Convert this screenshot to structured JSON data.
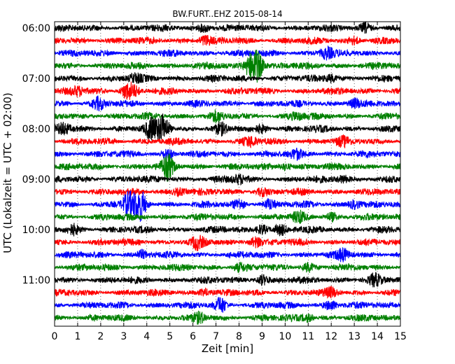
{
  "chart_data": {
    "type": "line",
    "title": "BW.FURT..EHZ 2015-08-14",
    "xlabel": "Zeit  [min]",
    "ylabel": "UTC (Lokalzeit = UTC + 02:00)",
    "xlim": [
      0,
      15
    ],
    "x_ticks": [
      0,
      1,
      2,
      3,
      4,
      5,
      6,
      7,
      8,
      9,
      10,
      11,
      12,
      13,
      14,
      15
    ],
    "y_tick_labels": [
      "06:00",
      "07:00",
      "08:00",
      "09:00",
      "10:00",
      "11:00"
    ],
    "trace_interval_min": 15,
    "grid": true,
    "trace_colors": [
      "#000000",
      "#ff0000",
      "#0000ff",
      "#008000"
    ],
    "series": [
      {
        "start": "06:00",
        "events": [
          [
            6.5,
            0.45
          ],
          [
            13.5,
            0.5
          ]
        ]
      },
      {
        "start": "06:15",
        "events": [
          [
            6.5,
            0.5
          ],
          [
            13.0,
            0.4
          ]
        ]
      },
      {
        "start": "06:30",
        "events": [
          [
            11.8,
            0.6
          ]
        ]
      },
      {
        "start": "06:45",
        "events": [
          [
            8.5,
            1.3
          ],
          [
            8.8,
            1.6
          ]
        ]
      },
      {
        "start": "07:00",
        "events": [
          [
            3.5,
            0.4
          ],
          [
            12.0,
            0.4
          ]
        ]
      },
      {
        "start": "07:15",
        "events": [
          [
            1.0,
            0.45
          ],
          [
            3.1,
            0.75
          ],
          [
            3.4,
            0.6
          ]
        ]
      },
      {
        "start": "07:30",
        "events": [
          [
            1.9,
            0.6
          ],
          [
            13.0,
            0.45
          ]
        ]
      },
      {
        "start": "07:45",
        "events": [
          [
            7.0,
            0.45
          ],
          [
            10.5,
            0.4
          ]
        ]
      },
      {
        "start": "08:00",
        "events": [
          [
            0.4,
            0.6
          ],
          [
            4.2,
            1.1
          ],
          [
            4.7,
            1.7
          ],
          [
            7.2,
            0.5
          ],
          [
            9.0,
            0.45
          ]
        ]
      },
      {
        "start": "08:15",
        "events": [
          [
            8.5,
            0.45
          ],
          [
            12.5,
            0.4
          ]
        ]
      },
      {
        "start": "08:30",
        "events": [
          [
            4.9,
            0.5
          ],
          [
            10.5,
            0.4
          ]
        ]
      },
      {
        "start": "08:45",
        "events": [
          [
            4.9,
            1.4
          ],
          [
            10.0,
            0.4
          ]
        ]
      },
      {
        "start": "09:00",
        "events": [
          [
            8.0,
            0.45
          ],
          [
            12.5,
            0.4
          ]
        ]
      },
      {
        "start": "09:15",
        "events": [
          [
            5.4,
            0.4
          ],
          [
            9.0,
            0.4
          ]
        ]
      },
      {
        "start": "09:30",
        "events": [
          [
            3.2,
            1.3
          ],
          [
            3.7,
            1.8
          ],
          [
            8.0,
            0.5
          ],
          [
            9.3,
            0.5
          ],
          [
            13.0,
            0.5
          ]
        ]
      },
      {
        "start": "09:45",
        "events": [
          [
            10.6,
            0.5
          ],
          [
            12.0,
            0.4
          ]
        ]
      },
      {
        "start": "10:00",
        "events": [
          [
            0.8,
            0.5
          ],
          [
            9.0,
            0.6
          ],
          [
            9.8,
            0.5
          ]
        ]
      },
      {
        "start": "10:15",
        "events": [
          [
            6.2,
            0.65
          ],
          [
            8.7,
            0.6
          ]
        ]
      },
      {
        "start": "10:30",
        "events": [
          [
            3.8,
            0.4
          ],
          [
            12.5,
            0.55
          ]
        ]
      },
      {
        "start": "10:45",
        "events": [
          [
            8.0,
            0.4
          ],
          [
            11.0,
            0.45
          ]
        ]
      },
      {
        "start": "11:00",
        "events": [
          [
            9.0,
            0.55
          ],
          [
            13.9,
            0.55
          ]
        ]
      },
      {
        "start": "11:15",
        "events": [
          [
            6.5,
            0.4
          ],
          [
            12.0,
            0.4
          ]
        ]
      },
      {
        "start": "11:30",
        "events": [
          [
            7.2,
            0.85
          ],
          [
            12.0,
            0.5
          ]
        ]
      },
      {
        "start": "11:45",
        "events": [
          [
            6.3,
            0.45
          ],
          [
            11.0,
            0.4
          ]
        ]
      }
    ]
  }
}
